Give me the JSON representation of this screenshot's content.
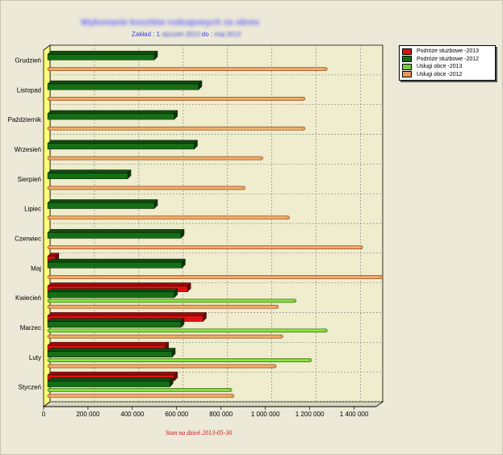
{
  "header": {
    "title": "Wykonanie kosztów rodzajowych za okres",
    "subtitle_prefix": "Zakład : 1",
    "subtitle_blur_1": "styczeń 2013",
    "subtitle_mid": "do :",
    "subtitle_blur_2": "maj 2013"
  },
  "footer": {
    "status": "Stan na dzień 2013-05-30"
  },
  "chart_data": {
    "type": "bar",
    "orientation": "horizontal",
    "style": "3d",
    "categories": [
      "Grudzień",
      "Listopad",
      "Październik",
      "Wrzesień",
      "Sierpień",
      "Lipiec",
      "Czerwiec",
      "Maj",
      "Kwiecień",
      "Marzec",
      "Luty",
      "Styczeń"
    ],
    "series": [
      {
        "name": "Podróże służbowe -2013",
        "color": "#e01010",
        "values": [
          0,
          0,
          0,
          0,
          0,
          0,
          0,
          25000,
          620000,
          690000,
          520000,
          560000
        ]
      },
      {
        "name": "Podróże służbowe -2012",
        "color": "#156e15",
        "values": [
          470000,
          670000,
          560000,
          650000,
          350000,
          470000,
          590000,
          595000,
          560000,
          590000,
          550000,
          540000
        ]
      },
      {
        "name": "Usługi obce -2013",
        "color": "#7cc83a",
        "values": [
          0,
          0,
          0,
          0,
          0,
          0,
          0,
          0,
          1110000,
          1250000,
          1180000,
          820000
        ]
      },
      {
        "name": "Usługi obce -2012",
        "color": "#e8995a",
        "values": [
          1250000,
          1150000,
          1150000,
          960000,
          880000,
          1080000,
          1410000,
          1500000,
          1030000,
          1050000,
          1020000,
          830000
        ]
      }
    ],
    "x_ticks": [
      "0",
      "200 000",
      "400 000",
      "600 000",
      "800 000",
      "1 000 000",
      "1 200 000",
      "1 400 000"
    ],
    "xlim": [
      0,
      1500000
    ],
    "grid": true,
    "legend": "top-right"
  }
}
